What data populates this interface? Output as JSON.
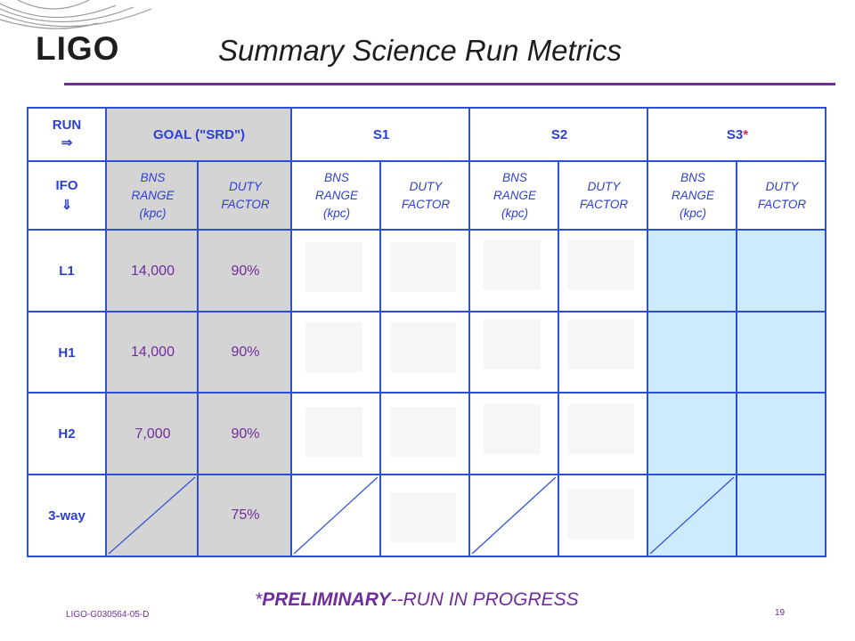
{
  "header": {
    "logo": "LIGO",
    "title": "Summary Science Run Metrics"
  },
  "table": {
    "corner_run": "RUN",
    "corner_run_arrow": "⇒",
    "corner_ifo": "IFO",
    "corner_ifo_arrow": "⇓",
    "groups": [
      {
        "label": "GOAL (\"SRD\")"
      },
      {
        "label": "S1"
      },
      {
        "label": "S2"
      },
      {
        "label": "S3",
        "marker": "*"
      }
    ],
    "subheaders": [
      {
        "line1": "BNS",
        "line2": "RANGE",
        "line3": "(kpc)"
      },
      {
        "line1": "DUTY",
        "line2": "FACTOR"
      }
    ],
    "rows": [
      {
        "ifo": "L1",
        "goal_range": "14,000",
        "goal_duty": "90%"
      },
      {
        "ifo": "H1",
        "goal_range": "14,000",
        "goal_duty": "90%"
      },
      {
        "ifo": "H2",
        "goal_range": "7,000",
        "goal_duty": "90%"
      },
      {
        "ifo": "3-way",
        "goal_range": "",
        "goal_duty": "75%"
      }
    ],
    "colors": {
      "border": "#2d4fd6",
      "goal_fill": "#d4d4d4",
      "s3_fill": "#cdeaff",
      "covered_cell": "#f6f6f8"
    }
  },
  "note": {
    "prefix": "*",
    "emphasis": "PRELIMINARY",
    "rest": "--RUN IN PROGRESS"
  },
  "footer": {
    "doc_id": "LIGO-G030564-05-D",
    "page": "19"
  }
}
